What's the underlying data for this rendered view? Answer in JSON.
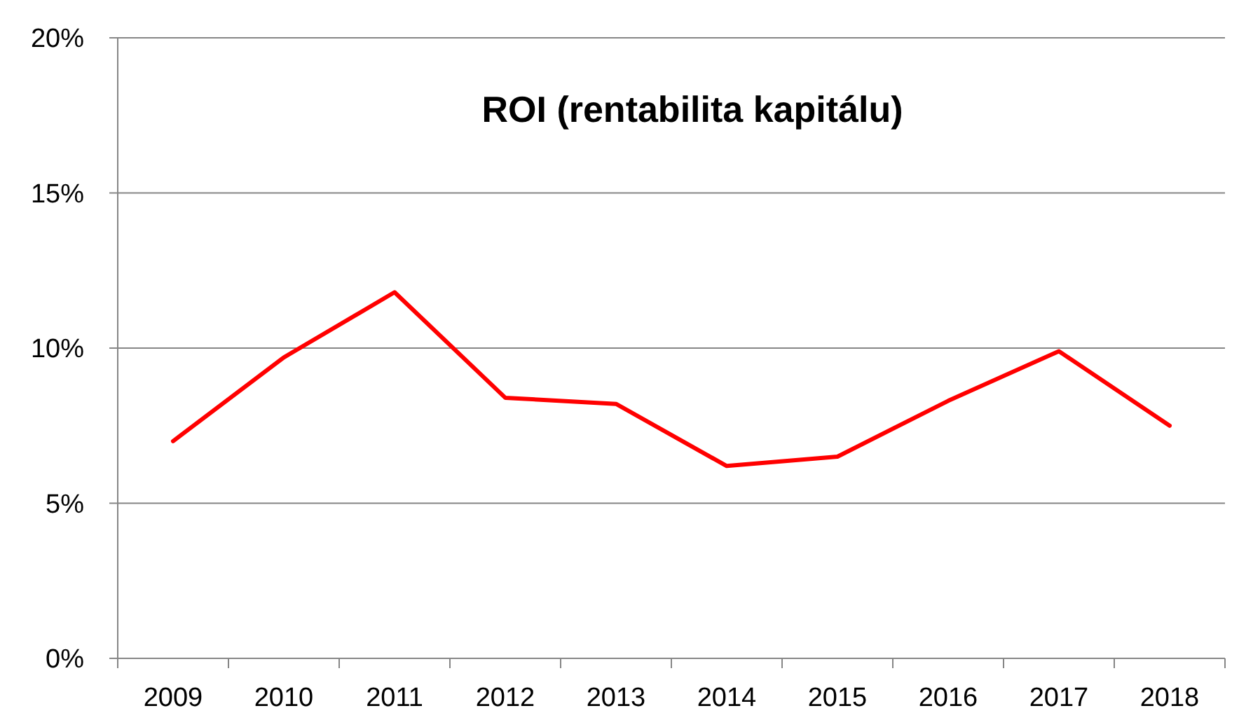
{
  "chart_data": {
    "type": "line",
    "title": "ROI (rentabilita kapitálu)",
    "categories": [
      "2009",
      "2010",
      "2011",
      "2012",
      "2013",
      "2014",
      "2015",
      "2016",
      "2017",
      "2018"
    ],
    "series": [
      {
        "color": "#ff0000",
        "values": [
          7.0,
          9.7,
          11.8,
          8.4,
          8.2,
          6.2,
          6.5,
          8.3,
          9.9,
          7.5
        ]
      }
    ],
    "ylim": [
      0,
      20
    ],
    "yticks": [
      {
        "value": 0,
        "label": "0%"
      },
      {
        "value": 5,
        "label": "5%"
      },
      {
        "value": 10,
        "label": "10%"
      },
      {
        "value": 15,
        "label": "15%"
      },
      {
        "value": 20,
        "label": "20%"
      }
    ],
    "grid": "y",
    "marker": "none",
    "line_style": "solid"
  }
}
